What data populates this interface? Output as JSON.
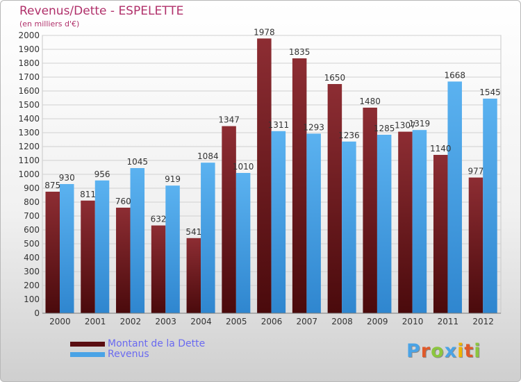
{
  "chart_data": {
    "type": "bar",
    "title": "Revenus/Dette - ESPELETTE",
    "subtitle": "(en milliers d'€)",
    "xlabel": "",
    "ylabel": "",
    "ylim": [
      0,
      2000
    ],
    "ytick_step": 100,
    "grid": true,
    "legend_position": "bottom-left",
    "categories": [
      "2000",
      "2001",
      "2002",
      "2003",
      "2004",
      "2005",
      "2006",
      "2007",
      "2008",
      "2009",
      "2010",
      "2011",
      "2012"
    ],
    "series": [
      {
        "name": "Montant de la Dette",
        "color": "#8a2a2e",
        "values": [
          875,
          811,
          760,
          632,
          541,
          1347,
          1978,
          1835,
          1650,
          1480,
          1307,
          1140,
          977
        ]
      },
      {
        "name": "Revenus",
        "color": "#4aa3e6",
        "values": [
          930,
          956,
          1045,
          919,
          1084,
          1010,
          1311,
          1293,
          1236,
          1285,
          1319,
          1668,
          1545
        ]
      }
    ]
  },
  "logo": {
    "text": "Proxiti",
    "colors": [
      "#4aa3e6",
      "#e05a2a",
      "#8cc63f",
      "#4aa3e6",
      "#f0b400",
      "#e05a2a",
      "#8cc63f"
    ]
  }
}
